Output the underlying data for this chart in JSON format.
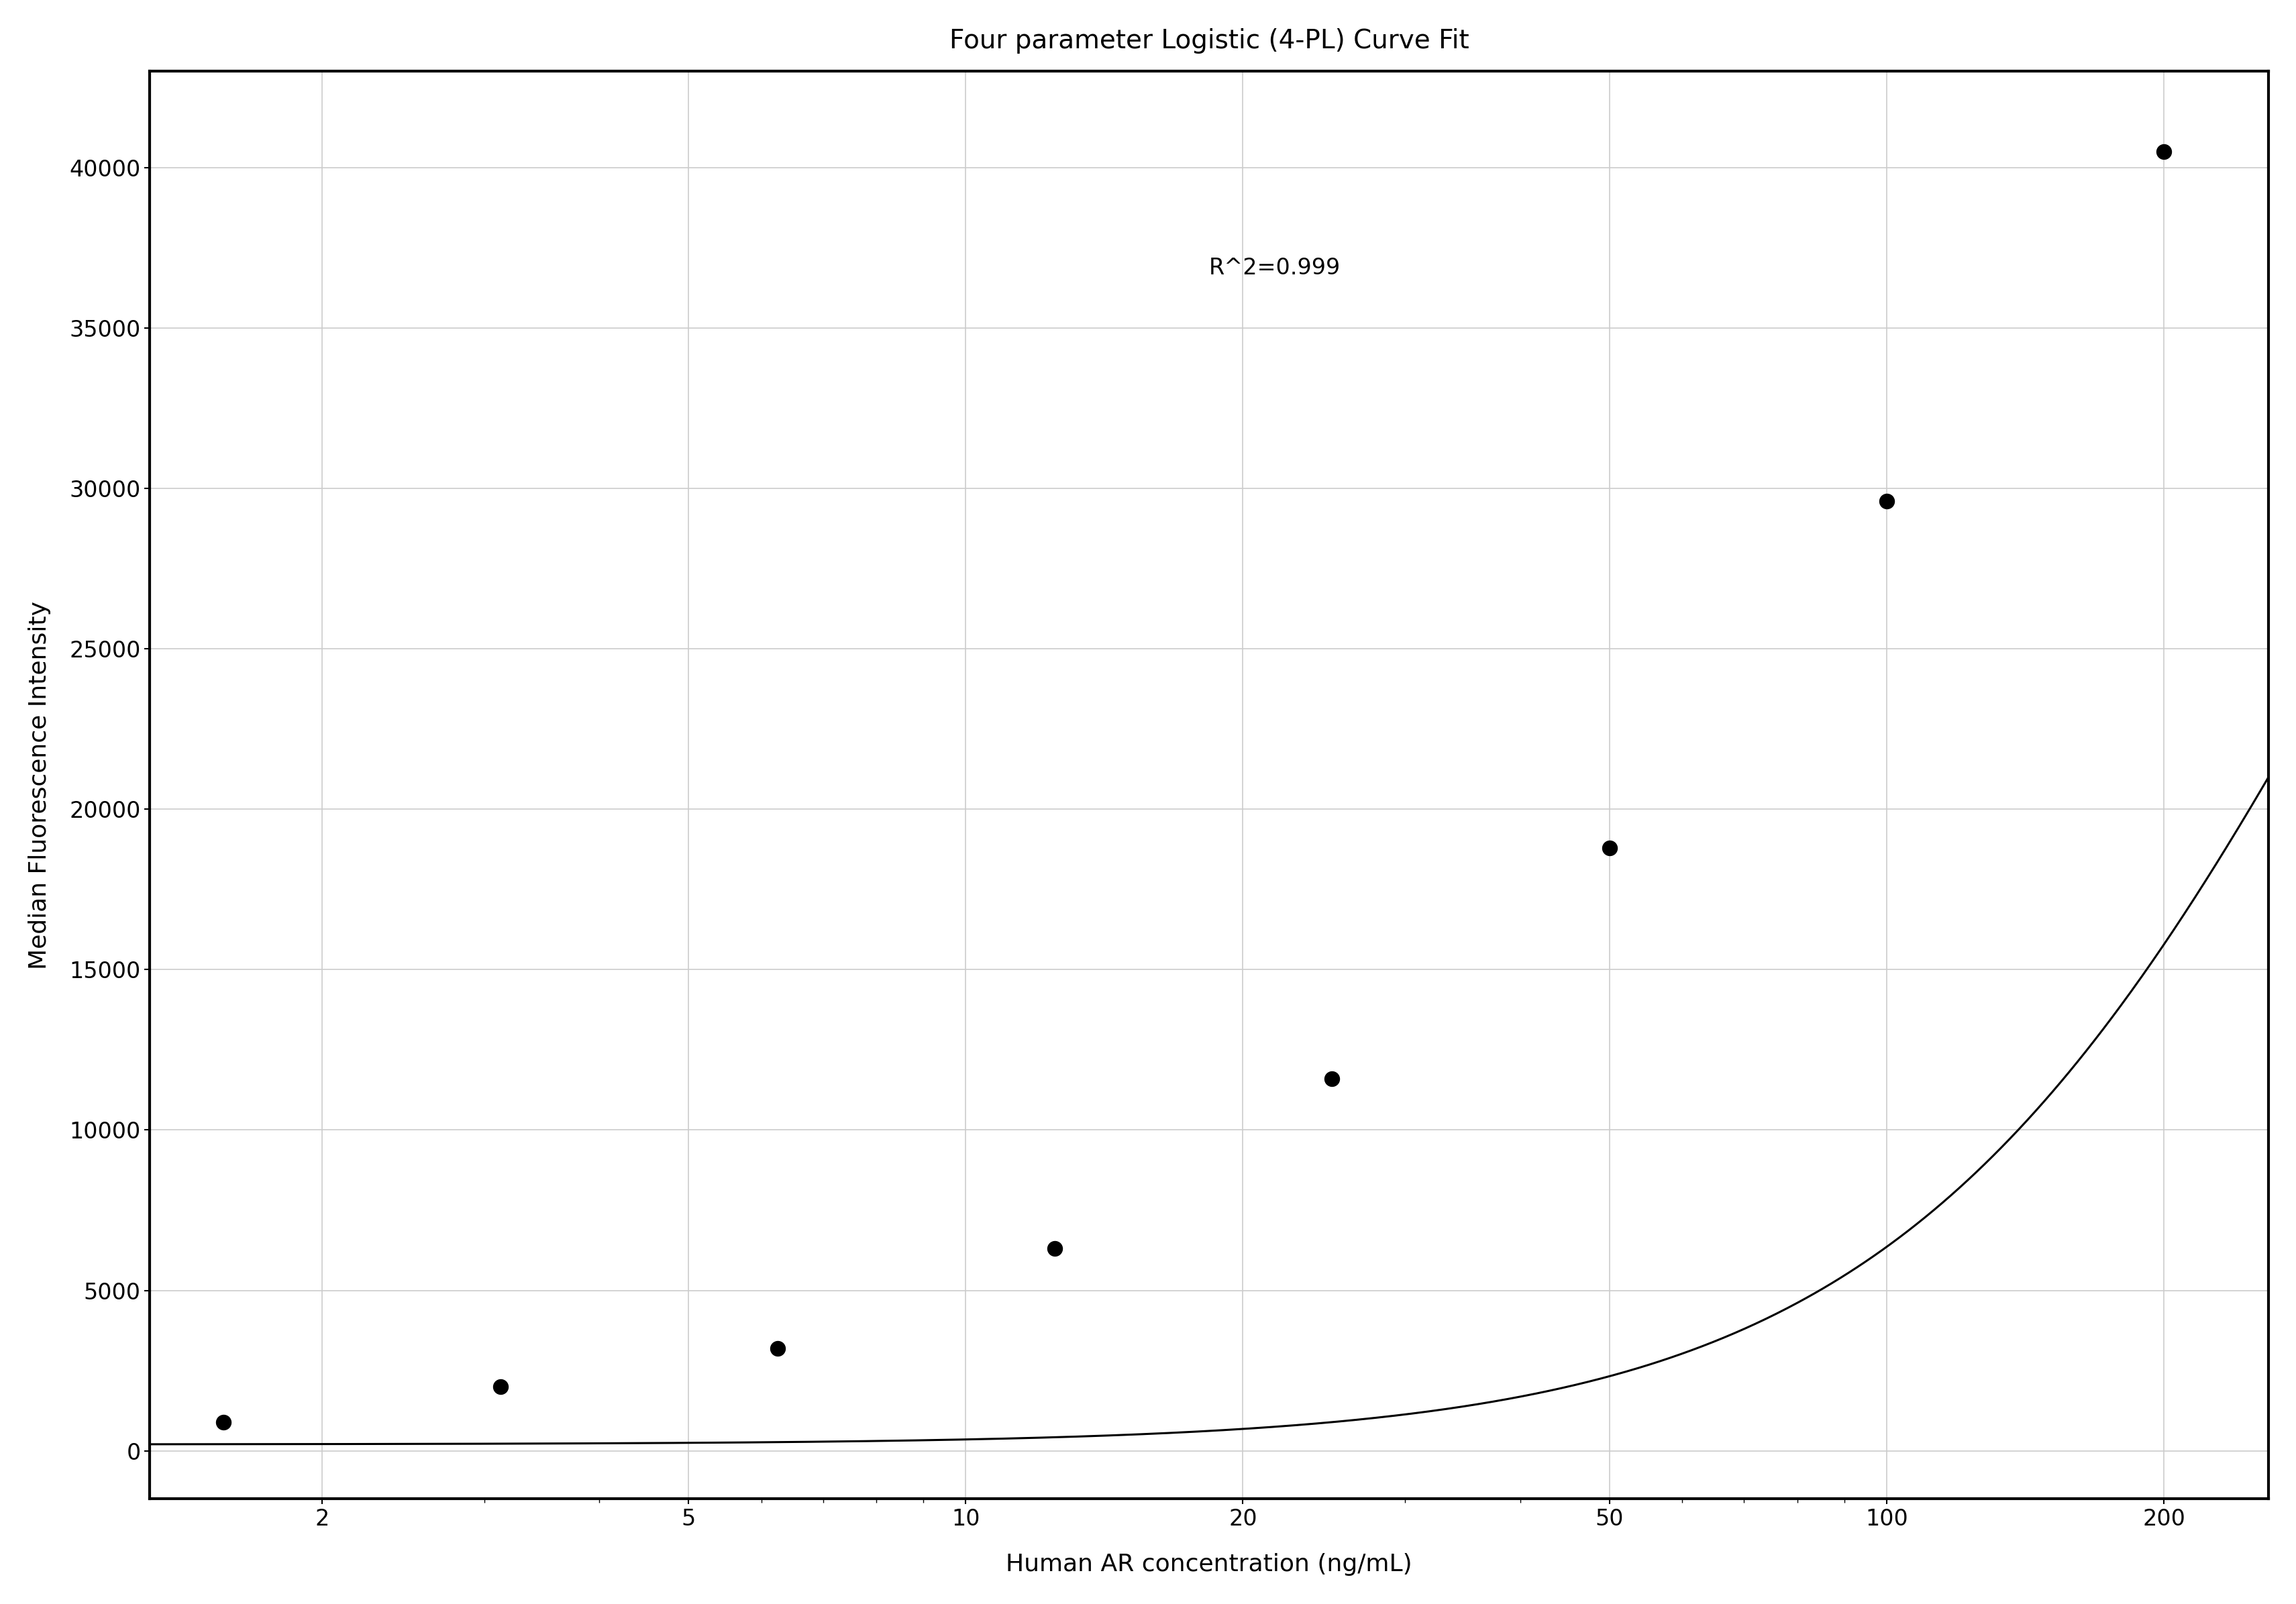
{
  "title": "Four parameter Logistic (4-PL) Curve Fit",
  "xlabel": "Human AR concentration (ng/mL)",
  "ylabel": "Median Fluorescence Intensity",
  "r_squared_text": "R^2=0.999",
  "data_x": [
    1.5625,
    3.125,
    6.25,
    12.5,
    25.0,
    50.0,
    100.0,
    200.0
  ],
  "data_y": [
    900,
    2000,
    3200,
    6300,
    11600,
    18800,
    29600,
    40500
  ],
  "xscale": "log",
  "xlim": [
    1.3,
    260
  ],
  "ylim": [
    -1500,
    43000
  ],
  "yticks": [
    0,
    5000,
    10000,
    15000,
    20000,
    25000,
    30000,
    35000,
    40000
  ],
  "xticks": [
    2,
    5,
    10,
    20,
    50,
    100,
    200
  ],
  "xtick_labels": [
    "2",
    "5",
    "10",
    "20",
    "50",
    "100",
    "200"
  ],
  "curve_color": "#000000",
  "scatter_color": "#000000",
  "background_color": "#ffffff",
  "grid_color": "#cccccc",
  "title_fontsize": 28,
  "axis_label_fontsize": 26,
  "tick_fontsize": 24,
  "annotation_fontsize": 24,
  "4pl_A": 200.0,
  "4pl_B": 1.65,
  "4pl_C": 350.0,
  "4pl_D": 55000.0
}
